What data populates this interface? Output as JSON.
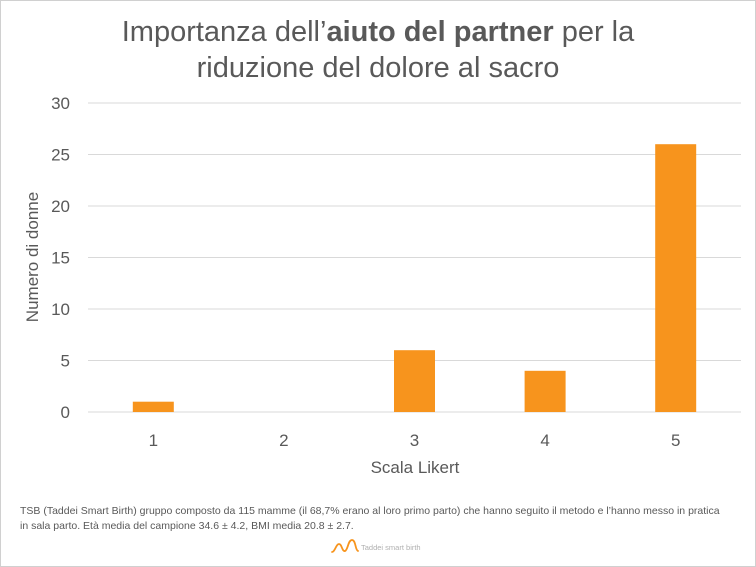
{
  "title": {
    "part1": "Importanza dell’",
    "bold": "aiuto del partner",
    "part2": " per la",
    "line2": "riduzione del dolore al sacro"
  },
  "chart_data": {
    "type": "bar",
    "categories": [
      "1",
      "2",
      "3",
      "4",
      "5"
    ],
    "values": [
      1,
      0,
      6,
      4,
      26
    ],
    "xlabel": "Scala Likert",
    "ylabel": "Numero di donne",
    "ylim": [
      0,
      30
    ],
    "yticks": [
      "0",
      "5",
      "10",
      "15",
      "20",
      "25",
      "30"
    ],
    "grid": true,
    "legend": "none",
    "bar_color": "#f7941d",
    "gridline_color": "#d9d9d9"
  },
  "footnote": "TSB (Taddei Smart Birth) gruppo composto da 115 mamme (il 68,7% erano al loro primo parto) che hanno seguito il metodo e l’hanno messo in pratica in sala parto. Età media del campione 34.6 ± 4.2, BMI media 20.8 ± 2.7.",
  "logo": {
    "text": "Taddei smart birth",
    "icon": "wave-logo-icon",
    "color": "#f7941d"
  }
}
